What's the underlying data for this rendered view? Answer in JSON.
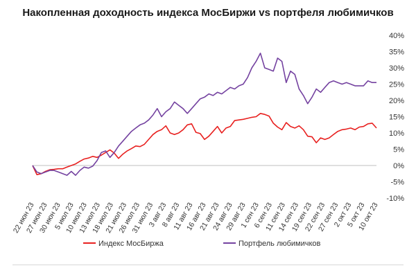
{
  "chart_data": {
    "type": "line",
    "title": "Накопленная доходность индекса МосБиржи vs портфеля любимичков",
    "x_tick_labels": [
      "22 июн 23",
      "27 июн 23",
      "30 июн 23",
      "5 июл 23",
      "10 июл 23",
      "13 июл 23",
      "18 июл 23",
      "21 июл 23",
      "26 июл 23",
      "31 июл 23",
      "3 авг 23",
      "8 авг 23",
      "11 авг 23",
      "16 авг 23",
      "21 авг 23",
      "24 авг 23",
      "29 авг 23",
      "1 сен 23",
      "6 сен 23",
      "11 сен 23",
      "14 сен 23",
      "19 сен 23",
      "22 сен 23",
      "27 сен 23",
      "2 окт 23",
      "5 окт 23",
      "10 окт 23"
    ],
    "y_tick_labels": [
      "40%",
      "35%",
      "30%",
      "25%",
      "20%",
      "15%",
      "10%",
      "5%",
      "0%",
      "-5%",
      "-10%"
    ],
    "ylim": [
      -10,
      40
    ],
    "y_unit": "%",
    "legend_position": "bottom",
    "series": [
      {
        "name": "Индекс МосБиржа",
        "color": "#e8201f",
        "values": [
          0,
          -2.8,
          -2.5,
          -1.8,
          -1.3,
          -1.2,
          -1.0,
          -1.0,
          -0.5,
          0,
          0.5,
          1.3,
          2.0,
          2.3,
          2.8,
          2.5,
          3.2,
          4.0,
          4.8,
          3.8,
          2.2,
          3.5,
          4.5,
          5.2,
          6.0,
          5.8,
          6.5,
          8.0,
          9.5,
          10.5,
          11.0,
          12.2,
          10.0,
          9.5,
          10.0,
          11.0,
          12.5,
          12.8,
          10.2,
          9.8,
          8.0,
          9.0,
          10.5,
          12.0,
          10.0,
          11.5,
          12.0,
          13.8,
          14.0,
          14.2,
          14.5,
          14.8,
          15.0,
          16.0,
          15.7,
          15.2,
          13.0,
          11.8,
          11.0,
          13.2,
          12.0,
          11.5,
          12.2,
          11.0,
          9.0,
          8.8,
          7.0,
          8.5,
          8.0,
          8.5,
          9.5,
          10.5,
          11.0,
          11.2,
          11.5,
          11.0,
          11.8,
          12.0,
          12.8,
          13.0,
          11.5
        ]
      },
      {
        "name": "Портфель любимичков",
        "color": "#7442a0",
        "values": [
          0,
          -2.0,
          -2.5,
          -2.0,
          -1.5,
          -1.5,
          -2.0,
          -2.5,
          -3.0,
          -1.8,
          -3.0,
          -1.5,
          -0.5,
          -0.8,
          -0.2,
          1.5,
          4.0,
          4.5,
          2.5,
          4.0,
          6.0,
          7.5,
          9.0,
          10.5,
          11.5,
          12.5,
          13.0,
          14.0,
          15.5,
          17.5,
          15.0,
          16.5,
          17.5,
          19.5,
          18.5,
          17.5,
          16.0,
          17.5,
          19.0,
          20.5,
          21.0,
          22.0,
          21.5,
          22.5,
          22.0,
          23.0,
          24.0,
          23.5,
          24.5,
          25.0,
          27.0,
          30.0,
          32.0,
          34.5,
          30.0,
          29.5,
          29.0,
          33.0,
          32.0,
          25.5,
          29.0,
          28.0,
          23.5,
          21.5,
          19.0,
          21.0,
          23.5,
          22.5,
          24.0,
          25.5,
          26.0,
          25.5,
          25.0,
          25.5,
          25.0,
          24.5,
          24.5,
          24.5,
          26.0,
          25.5,
          25.5
        ]
      }
    ]
  }
}
